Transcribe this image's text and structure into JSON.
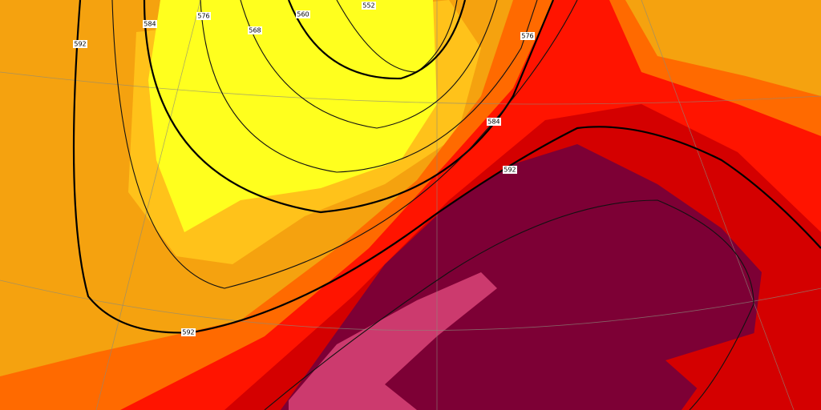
{
  "contour_labels": [
    "552",
    "560",
    "568",
    "576",
    "584",
    "592",
    "592",
    "592",
    "584",
    "576"
  ]
}
